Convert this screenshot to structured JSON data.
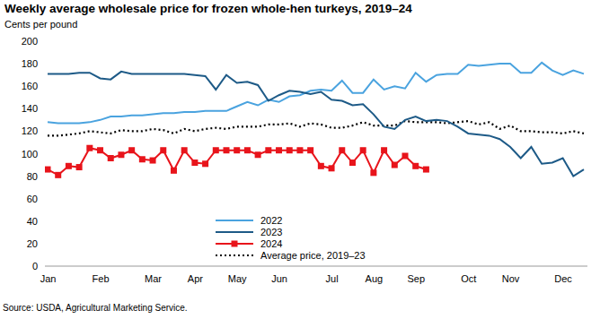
{
  "chart_data": {
    "type": "line",
    "title": "Weekly average wholesale price for frozen whole-hen turkeys, 2019–24",
    "y_label": "Cents per pound",
    "source": "Source: USDA, Agricultural Marketing Service.",
    "categories": [
      "Jan",
      null,
      null,
      null,
      null,
      "Feb",
      null,
      null,
      null,
      null,
      "Mar",
      null,
      null,
      null,
      "Apr",
      null,
      null,
      null,
      "May",
      null,
      null,
      null,
      "Jun",
      null,
      null,
      null,
      null,
      "Jul",
      null,
      null,
      null,
      "Aug",
      null,
      null,
      null,
      "Sep",
      null,
      null,
      null,
      null,
      "Oct",
      null,
      null,
      null,
      "Nov",
      null,
      null,
      null,
      null,
      "Dec",
      null,
      null
    ],
    "ylim": [
      0,
      200
    ],
    "yticks": [
      0,
      20,
      40,
      60,
      80,
      100,
      120,
      140,
      160,
      180,
      200
    ],
    "grid": false,
    "legend": "lower center",
    "series": [
      {
        "name": "2022",
        "color": "#4aa3df",
        "line_style": "solid",
        "values": [
          128,
          127,
          127,
          127,
          128,
          130,
          133,
          133,
          134,
          134,
          135,
          136,
          136,
          137,
          137,
          138,
          138,
          138,
          142,
          146,
          143,
          148,
          146,
          151,
          152,
          156,
          157,
          156,
          165,
          154,
          154,
          166,
          157,
          160,
          158,
          172,
          164,
          170,
          171,
          171,
          179,
          178,
          179,
          180,
          180,
          172,
          172,
          181,
          174,
          170,
          174,
          171
        ]
      },
      {
        "name": "2023",
        "color": "#1d5a87",
        "line_style": "solid",
        "values": [
          171,
          171,
          171,
          172,
          172,
          167,
          166,
          173,
          171,
          171,
          171,
          171,
          171,
          171,
          170,
          169,
          157,
          170,
          163,
          164,
          161,
          147,
          152,
          156,
          155,
          153,
          155,
          148,
          147,
          143,
          144,
          135,
          124,
          122,
          130,
          133,
          129,
          130,
          129,
          124,
          118,
          117,
          116,
          113,
          106,
          96,
          106,
          91,
          92,
          96,
          80,
          86
        ]
      },
      {
        "name": "2024",
        "color": "#e8141b",
        "line_style": "solid",
        "marker": "square",
        "values": [
          86,
          81,
          89,
          88,
          105,
          103,
          96,
          99,
          103,
          95,
          94,
          103,
          85,
          103,
          92,
          91,
          103,
          103,
          103,
          103,
          99,
          103,
          103,
          103,
          103,
          103,
          89,
          87,
          103,
          92,
          103,
          83,
          103,
          90,
          98,
          89,
          86,
          null,
          null,
          null,
          null,
          null,
          null,
          null,
          null,
          null,
          null,
          null,
          null,
          null,
          null,
          null
        ]
      },
      {
        "name": "Average price, 2019–23",
        "color": "#000000",
        "line_style": "dotted",
        "values": [
          116,
          116,
          117,
          118,
          120,
          119,
          118,
          121,
          120,
          120,
          122,
          121,
          118,
          122,
          120,
          122,
          123,
          122,
          124,
          124,
          124,
          126,
          126,
          127,
          124,
          127,
          126,
          123,
          123,
          125,
          128,
          125,
          125,
          125,
          129,
          128,
          128,
          128,
          127,
          128,
          129,
          126,
          128,
          122,
          125,
          120,
          120,
          119,
          119,
          118,
          120,
          118
        ]
      }
    ]
  }
}
